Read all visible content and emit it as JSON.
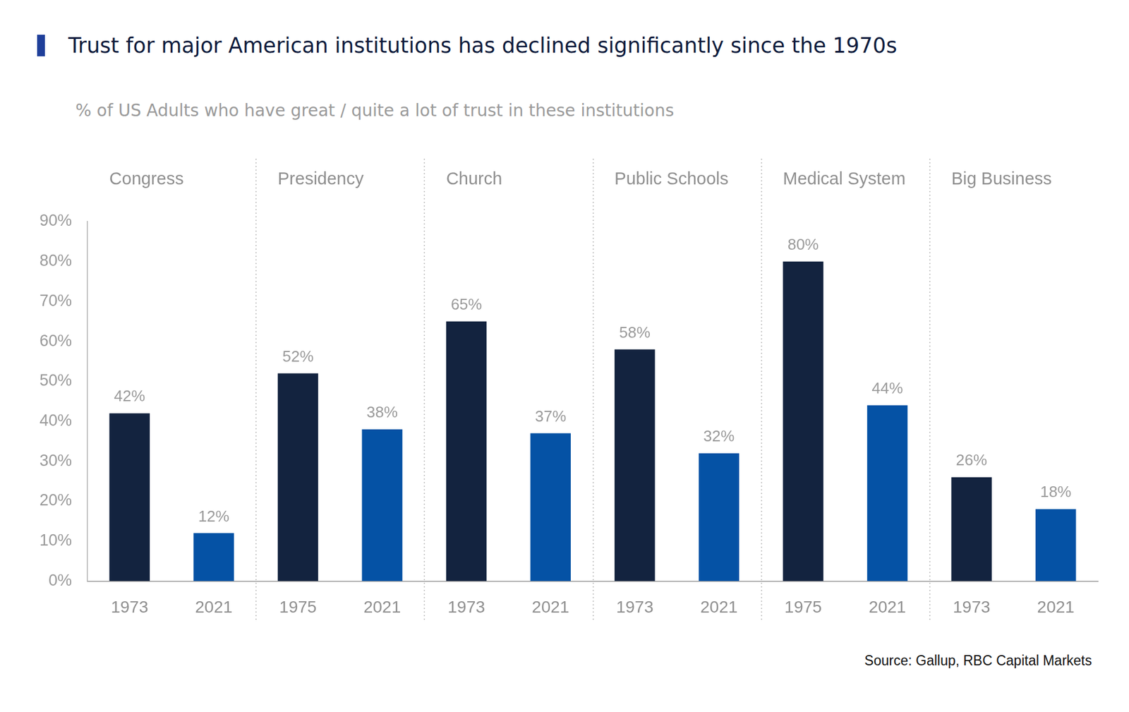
{
  "chart_data": {
    "type": "bar",
    "title": "Trust for major American institutions has declined significantly since the 1970s",
    "subtitle": "% of US Adults who have great / quite a lot of trust in these institutions",
    "groups": [
      "Congress",
      "Presidency",
      "Church",
      "Public Schools",
      "Medical System",
      "Big Business"
    ],
    "categories": [
      "1973",
      "2021",
      "1975",
      "2021",
      "1973",
      "2021",
      "1973",
      "2021",
      "1975",
      "2021",
      "1973",
      "2021"
    ],
    "values": [
      42,
      12,
      52,
      38,
      65,
      37,
      58,
      32,
      80,
      44,
      26,
      18
    ],
    "value_labels": [
      "42%",
      "12%",
      "52%",
      "38%",
      "65%",
      "37%",
      "58%",
      "32%",
      "80%",
      "44%",
      "26%",
      "18%"
    ],
    "colors": [
      "#13233f",
      "#0552a5",
      "#13233f",
      "#0552a5",
      "#13233f",
      "#0552a5",
      "#13233f",
      "#0552a5",
      "#13233f",
      "#0552a5",
      "#13233f",
      "#0552a5"
    ],
    "data_labels": true,
    "grid": false,
    "ylim": [
      0,
      90
    ],
    "yticks": [
      {
        "value": 0,
        "label": "0%"
      },
      {
        "value": 10,
        "label": "10%"
      },
      {
        "value": 20,
        "label": "20%"
      },
      {
        "value": 30,
        "label": "30%"
      },
      {
        "value": 40,
        "label": "40%"
      },
      {
        "value": 50,
        "label": "50%"
      },
      {
        "value": 60,
        "label": "60%"
      },
      {
        "value": 70,
        "label": "70%"
      },
      {
        "value": 80,
        "label": "80%"
      },
      {
        "value": 90,
        "label": "90%"
      }
    ],
    "source": "Source: Gallup, RBC Capital Markets"
  }
}
